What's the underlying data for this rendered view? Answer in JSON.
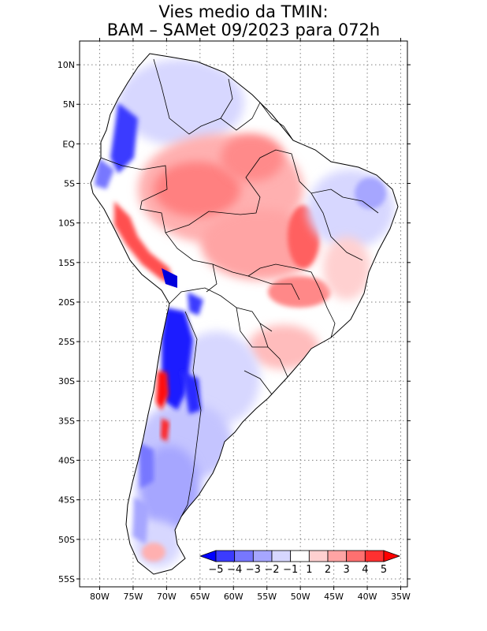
{
  "title": {
    "line1": "Vies medio da TMIN:",
    "line2": "BAM – SAMet 09/2023  para 072h"
  },
  "map": {
    "lat_ticks": [
      "10N",
      "5N",
      "EQ",
      "5S",
      "10S",
      "15S",
      "20S",
      "25S",
      "30S",
      "35S",
      "40S",
      "45S",
      "50S",
      "55S"
    ],
    "lat_values": [
      10,
      5,
      0,
      -5,
      -10,
      -15,
      -20,
      -25,
      -30,
      -35,
      -40,
      -45,
      -50,
      -55
    ],
    "lon_ticks": [
      "80W",
      "75W",
      "70W",
      "65W",
      "60W",
      "55W",
      "50W",
      "45W",
      "40W",
      "35W"
    ],
    "lon_values": [
      -80,
      -75,
      -70,
      -65,
      -60,
      -55,
      -50,
      -45,
      -40,
      -35
    ],
    "lon_range": [
      -83,
      -34
    ],
    "lat_range": [
      -56,
      13
    ],
    "grid": true
  },
  "colorbar": {
    "labels": [
      "−5",
      "−4",
      "−3",
      "−2",
      "−1",
      "1",
      "2",
      "3",
      "4",
      "5"
    ],
    "colors": [
      "#0000ff",
      "#3b3bff",
      "#7777ff",
      "#a6a6ff",
      "#d7d7ff",
      "#ffffff",
      "#ffd0d0",
      "#ffa4a4",
      "#ff7070",
      "#ff3030",
      "#ff0000"
    ]
  }
}
